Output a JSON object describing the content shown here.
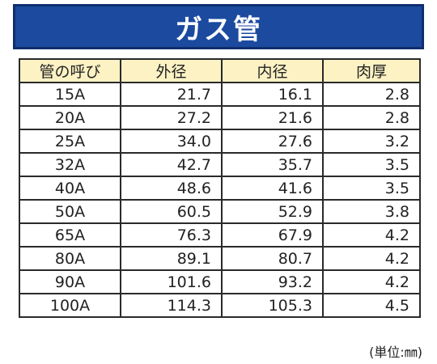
{
  "title": "ガス管",
  "colors": {
    "banner_bg": "#1b4a9f",
    "header_bg": "#fdf2c4"
  },
  "table": {
    "headers": [
      "管の呼び",
      "外径",
      "内径",
      "肉厚"
    ],
    "rows": [
      [
        "15A",
        "21.7",
        "16.1",
        "2.8"
      ],
      [
        "20A",
        "27.2",
        "21.6",
        "2.8"
      ],
      [
        "25A",
        "34.0",
        "27.6",
        "3.2"
      ],
      [
        "32A",
        "42.7",
        "35.7",
        "3.5"
      ],
      [
        "40A",
        "48.6",
        "41.6",
        "3.5"
      ],
      [
        "50A",
        "60.5",
        "52.9",
        "3.8"
      ],
      [
        "65A",
        "76.3",
        "67.9",
        "4.2"
      ],
      [
        "80A",
        "89.1",
        "80.7",
        "4.2"
      ],
      [
        "90A",
        "101.6",
        "93.2",
        "4.2"
      ],
      [
        "100A",
        "114.3",
        "105.3",
        "4.5"
      ]
    ]
  },
  "unit_note": "(単位:㎜)"
}
